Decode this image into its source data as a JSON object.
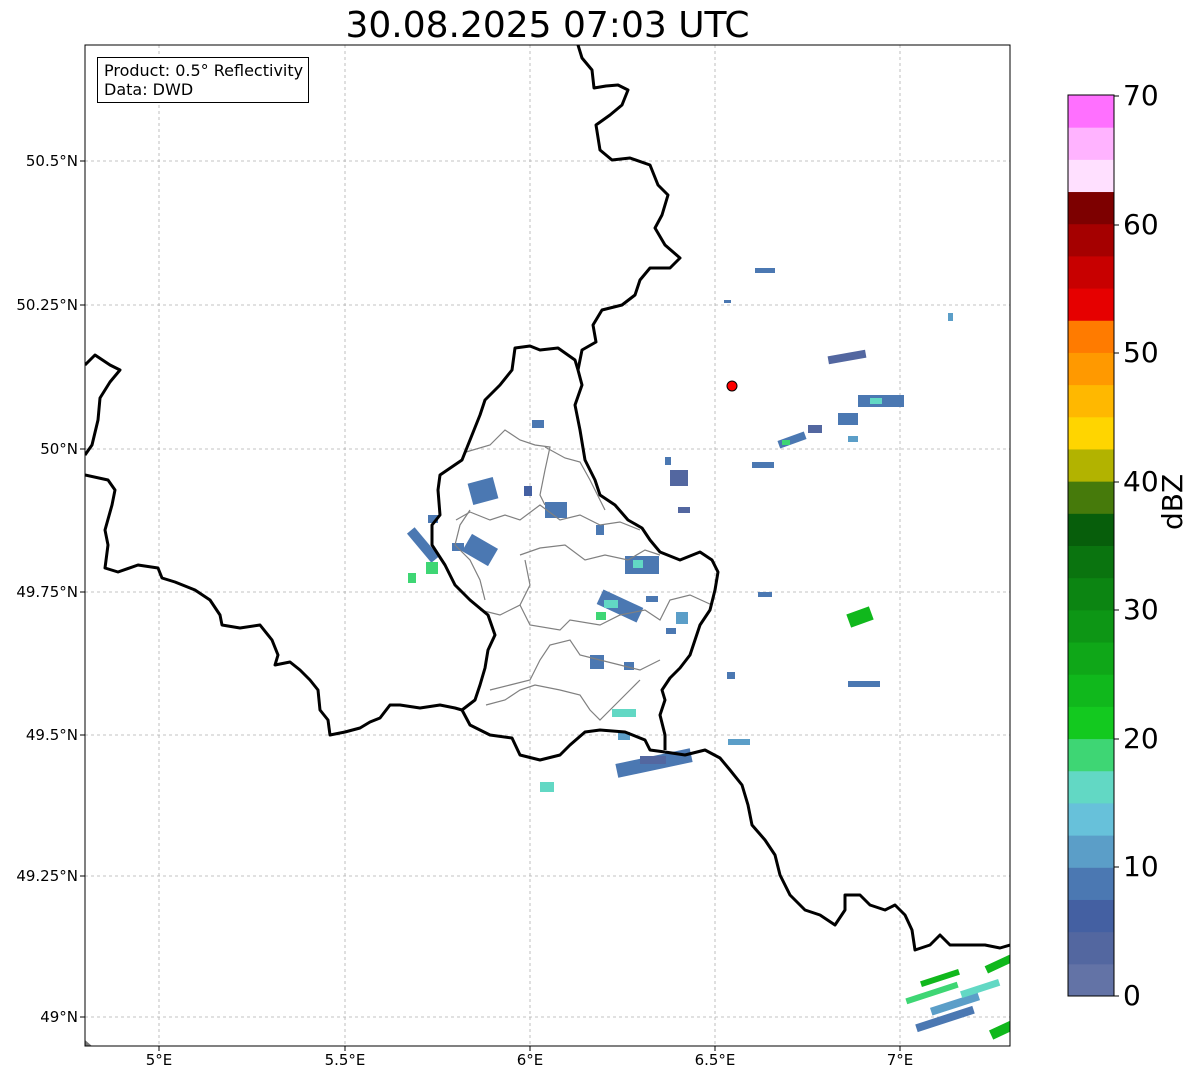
{
  "title": "30.08.2025 07:03 UTC",
  "legend": {
    "product": "Product: 0.5° Reflectivity",
    "data_source": "Data: DWD"
  },
  "axes": {
    "y_ticks": [
      "50.5°N",
      "50.25°N",
      "50°N",
      "49.75°N",
      "49.5°N",
      "49.25°N",
      "49°N"
    ],
    "x_ticks": [
      "5°E",
      "5.5°E",
      "6°E",
      "6.5°E",
      "7°E"
    ]
  },
  "colorbar": {
    "label": "dBZ",
    "ticks": [
      "70",
      "60",
      "50",
      "40",
      "30",
      "20",
      "10",
      "0"
    ],
    "range": [
      0,
      70
    ],
    "step": 2.5,
    "colors": [
      "#6373a6",
      "#5367a0",
      "#4460a2",
      "#4b78b2",
      "#5b9ec8",
      "#67c1da",
      "#62d8c4",
      "#3ed674",
      "#13c91f",
      "#10b81c",
      "#0fa718",
      "#0d9615",
      "#0c8512",
      "#0a740f",
      "#075e0b",
      "#467a0b",
      "#b2b300",
      "#ffd500",
      "#ffb800",
      "#ff9900",
      "#ff7b00",
      "#e60000",
      "#c80000",
      "#a50000",
      "#7d0000",
      "#ffe0ff",
      "#ffb3ff",
      "#ff70ff",
      "#ee33ee"
    ]
  },
  "colors": {
    "border": "#000000",
    "district_border": "#808080",
    "grid": "#b0b0b0",
    "radar_site": "#ff0000"
  }
}
